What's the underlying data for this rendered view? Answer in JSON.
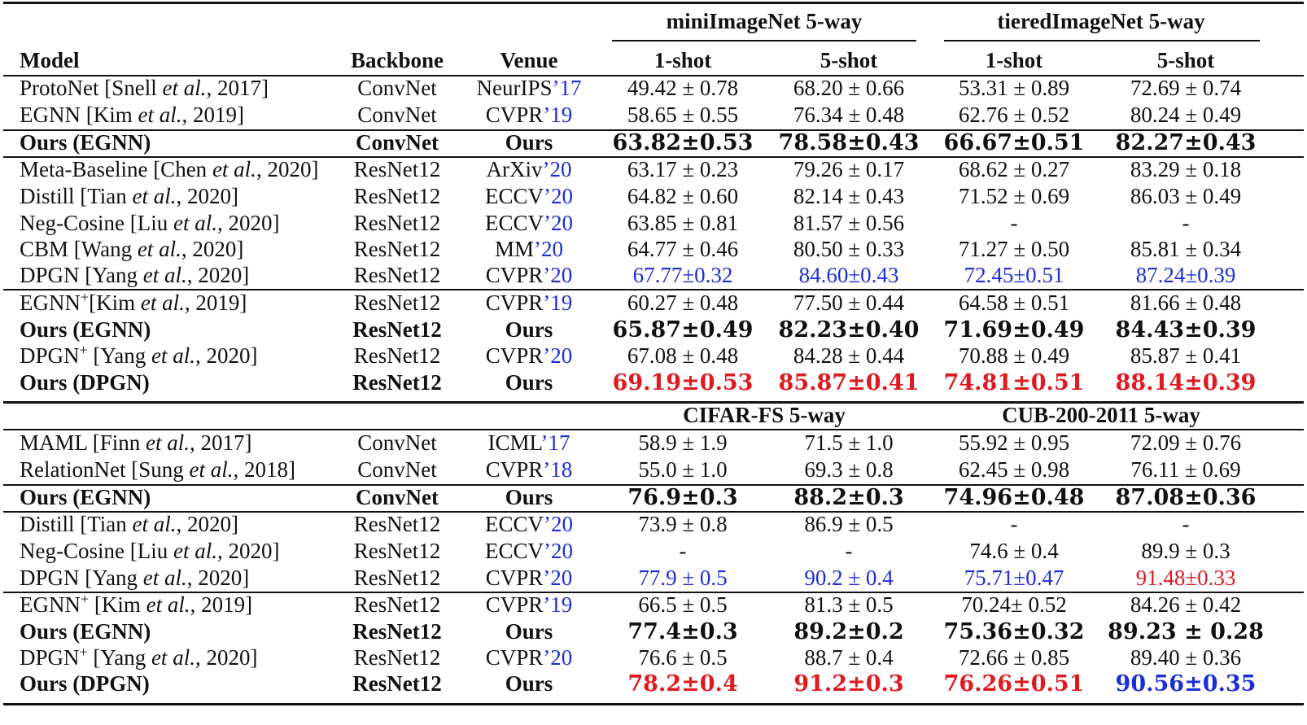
{
  "header": {
    "col_model": "Model",
    "col_backbone": "Backbone",
    "col_venue": "Venue",
    "group_a1": "miniImageNet 5-way",
    "group_a2": "tieredImageNet 5-way",
    "group_b1": "CIFAR-FS 5-way",
    "group_b2": "CUB-200-2011 5-way",
    "shot1": "1-shot",
    "shot5": "5-shot"
  },
  "colors": {
    "blue": "#1a2ed6",
    "red": "#e0181f"
  },
  "rows": [
    {
      "name": "ProtoNet [Snell ",
      "em": "et al.",
      "year": ", 2017]",
      "sup": "",
      "backbone": "ConvNet",
      "venue": "NeurIPS",
      "venue_year": "’17",
      "bold": false,
      "cells": [
        [
          "49.42 ± 0.78",
          ""
        ],
        [
          "68.20 ± 0.66",
          ""
        ],
        [
          "53.31 ± 0.89",
          ""
        ],
        [
          "72.69 ± 0.74",
          ""
        ]
      ]
    },
    {
      "name": "EGNN [Kim ",
      "em": "et al.",
      "year": ", 2019]",
      "sup": "",
      "backbone": "ConvNet",
      "venue": "CVPR",
      "venue_year": "’19",
      "bold": false,
      "cells": [
        [
          "58.65 ± 0.55",
          ""
        ],
        [
          "76.34 ± 0.48",
          ""
        ],
        [
          "62.76 ± 0.52",
          ""
        ],
        [
          "80.24 ± 0.49",
          ""
        ]
      ]
    },
    {
      "name": "Ours (EGNN)",
      "em": "",
      "year": "",
      "sup": "",
      "backbone": "ConvNet",
      "venue": "Ours",
      "venue_year": "",
      "bold": true,
      "cells": [
        [
          "63.82±0.53",
          ""
        ],
        [
          "78.58±0.43",
          ""
        ],
        [
          "66.67±0.51",
          ""
        ],
        [
          "82.27±0.43",
          ""
        ]
      ]
    },
    {
      "name": "Meta-Baseline [Chen ",
      "em": "et al.",
      "year": ", 2020]",
      "sup": "",
      "backbone": "ResNet12",
      "venue": "ArXiv",
      "venue_year": "’20",
      "bold": false,
      "cells": [
        [
          "63.17 ± 0.23",
          ""
        ],
        [
          "79.26 ± 0.17",
          ""
        ],
        [
          "68.62 ± 0.27",
          ""
        ],
        [
          "83.29 ± 0.18",
          ""
        ]
      ]
    },
    {
      "name": "Distill [Tian ",
      "em": "et al.",
      "year": ", 2020]",
      "sup": "",
      "backbone": "ResNet12",
      "venue": "ECCV",
      "venue_year": "’20",
      "bold": false,
      "cells": [
        [
          "64.82 ± 0.60",
          ""
        ],
        [
          "82.14 ± 0.43",
          ""
        ],
        [
          "71.52 ± 0.69",
          ""
        ],
        [
          "86.03 ± 0.49",
          ""
        ]
      ]
    },
    {
      "name": "Neg-Cosine [Liu ",
      "em": "et al.",
      "year": ", 2020]",
      "sup": "",
      "backbone": "ResNet12",
      "venue": "ECCV",
      "venue_year": "’20",
      "bold": false,
      "cells": [
        [
          "63.85 ± 0.81",
          ""
        ],
        [
          "81.57 ± 0.56",
          ""
        ],
        [
          "-",
          ""
        ],
        [
          "-",
          ""
        ]
      ]
    },
    {
      "name": "CBM [Wang ",
      "em": "et al.",
      "year": ", 2020]",
      "sup": "",
      "backbone": "ResNet12",
      "venue": "MM",
      "venue_year": "’20",
      "bold": false,
      "cells": [
        [
          "64.77 ± 0.46",
          ""
        ],
        [
          "80.50 ± 0.33",
          ""
        ],
        [
          "71.27 ± 0.50",
          ""
        ],
        [
          "85.81 ± 0.34",
          ""
        ]
      ]
    },
    {
      "name": "DPGN [Yang ",
      "em": "et al.",
      "year": ", 2020]",
      "sup": "",
      "backbone": "ResNet12",
      "venue": "CVPR",
      "venue_year": "’20",
      "bold": false,
      "cells": [
        [
          "67.77±0.32",
          "blue"
        ],
        [
          "84.60±0.43",
          "blue"
        ],
        [
          "72.45±0.51",
          "blue"
        ],
        [
          "87.24±0.39",
          "blue"
        ]
      ]
    },
    {
      "name": "EGNN",
      "em": "et al.",
      "year": ", 2019]",
      "sup": "+",
      "after_sup": "[Kim ",
      "backbone": "ResNet12",
      "venue": "CVPR",
      "venue_year": "’19",
      "bold": false,
      "cells": [
        [
          "60.27 ± 0.48",
          ""
        ],
        [
          "77.50 ± 0.44",
          ""
        ],
        [
          "64.58 ± 0.51",
          ""
        ],
        [
          "81.66 ± 0.48",
          ""
        ]
      ]
    },
    {
      "name": "Ours (EGNN)",
      "em": "",
      "year": "",
      "sup": "",
      "backbone": "ResNet12",
      "venue": "Ours",
      "venue_year": "",
      "bold": true,
      "cells": [
        [
          "65.87±0.49",
          ""
        ],
        [
          "82.23±0.40",
          ""
        ],
        [
          "71.69±0.49",
          ""
        ],
        [
          "84.43±0.39",
          ""
        ]
      ]
    },
    {
      "name": "DPGN",
      "em": "et al.",
      "year": ", 2020]",
      "sup": "+",
      "after_sup": " [Yang ",
      "backbone": "ResNet12",
      "venue": "CVPR",
      "venue_year": "’20",
      "bold": false,
      "cells": [
        [
          "67.08 ± 0.48",
          ""
        ],
        [
          "84.28 ± 0.44",
          ""
        ],
        [
          "70.88 ± 0.49",
          ""
        ],
        [
          "85.87 ± 0.41",
          ""
        ]
      ]
    },
    {
      "name": "Ours (DPGN)",
      "em": "",
      "year": "",
      "sup": "",
      "backbone": "ResNet12",
      "venue": "Ours",
      "venue_year": "",
      "bold": true,
      "cells": [
        [
          "69.19±0.53",
          "red"
        ],
        [
          "85.87±0.41",
          "red"
        ],
        [
          "74.81±0.51",
          "red"
        ],
        [
          "88.14±0.39",
          "red"
        ]
      ]
    },
    {
      "name": "MAML [Finn ",
      "em": "et al.",
      "year": ", 2017]",
      "sup": "",
      "backbone": "ConvNet",
      "venue": "ICML",
      "venue_year": "’17",
      "bold": false,
      "cells": [
        [
          "58.9 ± 1.9",
          ""
        ],
        [
          "71.5 ± 1.0",
          ""
        ],
        [
          "55.92 ± 0.95",
          ""
        ],
        [
          "72.09 ± 0.76",
          ""
        ]
      ]
    },
    {
      "name": "RelationNet [Sung ",
      "em": "et al.",
      "year": ", 2018]",
      "sup": "",
      "backbone": "ConvNet",
      "venue": "CVPR",
      "venue_year": "’18",
      "bold": false,
      "cells": [
        [
          "55.0 ± 1.0",
          ""
        ],
        [
          "69.3 ± 0.8",
          ""
        ],
        [
          "62.45 ± 0.98",
          ""
        ],
        [
          "76.11 ± 0.69",
          ""
        ]
      ]
    },
    {
      "name": "Ours (EGNN)",
      "em": "",
      "year": "",
      "sup": "",
      "backbone": "ConvNet",
      "venue": "Ours",
      "venue_year": "",
      "bold": true,
      "cells": [
        [
          "76.9±0.3",
          ""
        ],
        [
          "88.2±0.3",
          ""
        ],
        [
          "74.96±0.48",
          ""
        ],
        [
          "87.08±0.36",
          ""
        ]
      ]
    },
    {
      "name": "Distill [Tian ",
      "em": "et al.",
      "year": ", 2020]",
      "sup": "",
      "backbone": "ResNet12",
      "venue": "ECCV",
      "venue_year": "’20",
      "bold": false,
      "cells": [
        [
          "73.9 ± 0.8",
          ""
        ],
        [
          "86.9 ± 0.5",
          ""
        ],
        [
          "-",
          ""
        ],
        [
          "-",
          ""
        ]
      ]
    },
    {
      "name": "Neg-Cosine [Liu ",
      "em": "et al.",
      "year": ", 2020]",
      "sup": "",
      "backbone": "ResNet12",
      "venue": "ECCV",
      "venue_year": "’20",
      "bold": false,
      "cells": [
        [
          "-",
          ""
        ],
        [
          "-",
          ""
        ],
        [
          "74.6 ± 0.4",
          ""
        ],
        [
          "89.9 ± 0.3",
          ""
        ]
      ]
    },
    {
      "name": "DPGN [Yang ",
      "em": "et al.",
      "year": ", 2020]",
      "sup": "",
      "backbone": "ResNet12",
      "venue": "CVPR",
      "venue_year": "’20",
      "bold": false,
      "cells": [
        [
          "77.9 ± 0.5",
          "blue"
        ],
        [
          "90.2 ± 0.4",
          "blue"
        ],
        [
          "75.71±0.47",
          "blue"
        ],
        [
          "91.48±0.33",
          "red"
        ]
      ]
    },
    {
      "name": "EGNN",
      "em": "et al.",
      "year": ", 2019]",
      "sup": "+",
      "after_sup": " [Kim ",
      "backbone": "ResNet12",
      "venue": "CVPR",
      "venue_year": "’19",
      "bold": false,
      "cells": [
        [
          "66.5 ± 0.5",
          ""
        ],
        [
          "81.3 ± 0.5",
          ""
        ],
        [
          "70.24± 0.52",
          ""
        ],
        [
          "84.26 ± 0.42",
          ""
        ]
      ]
    },
    {
      "name": "Ours (EGNN)",
      "em": "",
      "year": "",
      "sup": "",
      "backbone": "ResNet12",
      "venue": "Ours",
      "venue_year": "",
      "bold": true,
      "cells": [
        [
          "77.4±0.3",
          ""
        ],
        [
          "89.2±0.2",
          ""
        ],
        [
          "75.36±0.32",
          ""
        ],
        [
          "89.23 ± 0.28",
          ""
        ]
      ]
    },
    {
      "name": "DPGN",
      "em": "et al.",
      "year": ", 2020]",
      "sup": "+",
      "after_sup": " [Yang ",
      "backbone": "ResNet12",
      "venue": "CVPR",
      "venue_year": "’20",
      "bold": false,
      "cells": [
        [
          "76.6 ± 0.5",
          ""
        ],
        [
          "88.7 ± 0.4",
          ""
        ],
        [
          "72.66 ± 0.85",
          ""
        ],
        [
          "89.40 ± 0.36",
          ""
        ]
      ]
    },
    {
      "name": "Ours (DPGN)",
      "em": "",
      "year": "",
      "sup": "",
      "backbone": "ResNet12",
      "venue": "Ours",
      "venue_year": "",
      "bold": true,
      "cells": [
        [
          "78.2±0.4",
          "red"
        ],
        [
          "91.2±0.3",
          "red"
        ],
        [
          "76.26±0.51",
          "red"
        ],
        [
          "90.56±0.35",
          "blue"
        ]
      ]
    }
  ]
}
